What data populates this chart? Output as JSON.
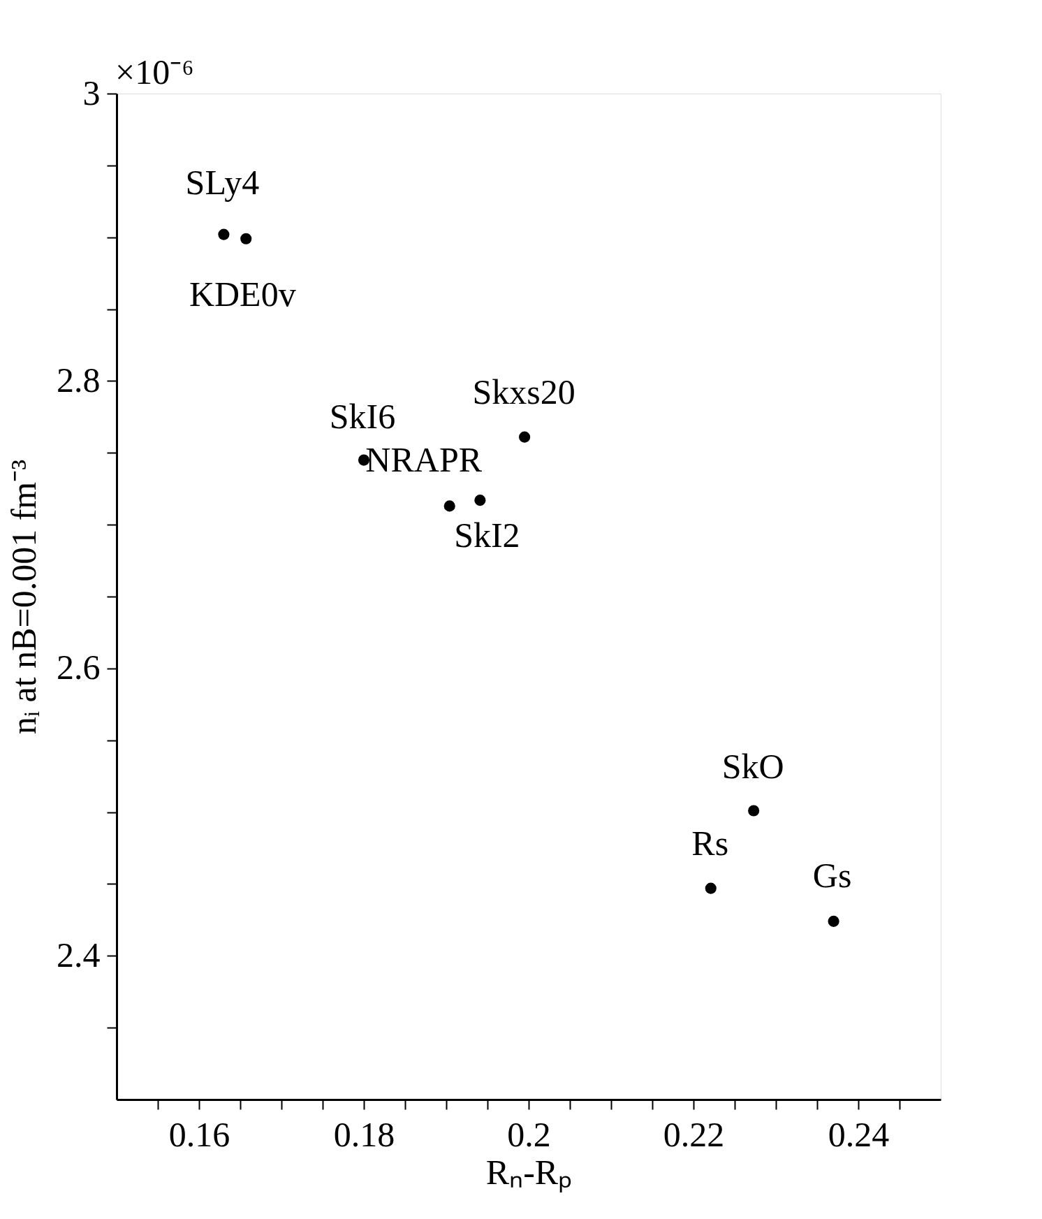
{
  "chart_data": {
    "type": "scatter",
    "xlabel": "Rₙ-Rₚ",
    "ylabel": "nᵢ at nB=0.001 fm⁻³",
    "x": [
      0.163,
      0.1657,
      0.18,
      0.1904,
      0.1941,
      0.1995,
      0.2273,
      0.2221,
      0.237
    ],
    "series": [
      {
        "color": "#000000",
        "values": [
          2.902,
          2.899,
          2.745,
          2.713,
          2.717,
          2.761,
          2.501,
          2.447,
          2.424
        ]
      }
    ],
    "marker": "circle",
    "xlim": [
      0.15,
      0.25
    ],
    "ylim": [
      2.3,
      3
    ],
    "xticks": [
      {
        "value": 0.155,
        "label": null
      },
      0.16,
      {
        "value": 0.165,
        "label": null
      },
      {
        "value": 0.17,
        "label": null
      },
      {
        "value": 0.175,
        "label": null
      },
      0.18,
      {
        "value": 0.185,
        "label": null
      },
      {
        "value": 0.19,
        "label": null
      },
      {
        "value": 0.195,
        "label": null
      },
      0.2,
      {
        "value": 0.205,
        "label": null
      },
      {
        "value": 0.21,
        "label": null
      },
      {
        "value": 0.215,
        "label": null
      },
      0.22,
      {
        "value": 0.225,
        "label": null
      },
      {
        "value": 0.23,
        "label": null
      },
      {
        "value": 0.235,
        "label": null
      },
      0.24,
      {
        "value": 0.245,
        "label": null
      }
    ],
    "yticks": [
      {
        "value": 2.35,
        "label": null
      },
      2.4,
      {
        "value": 2.45,
        "label": null
      },
      {
        "value": 2.5,
        "label": null
      },
      {
        "value": 2.55,
        "label": null
      },
      2.6,
      {
        "value": 2.65,
        "label": null
      },
      {
        "value": 2.7,
        "label": null
      },
      {
        "value": 2.75,
        "label": null
      },
      2.8,
      {
        "value": 2.85,
        "label": null
      },
      {
        "value": 2.9,
        "label": null
      },
      {
        "value": 2.95,
        "label": null
      },
      3
    ],
    "grid": false,
    "annotations": [
      {
        "text": "SLy4",
        "x": 0.163,
        "y": 2.902
      },
      {
        "text": "KDE0v",
        "x": 0.1657,
        "y": 2.899
      },
      {
        "text": "SkI6",
        "x": 0.18,
        "y": 2.745
      },
      {
        "text": "NRAPR",
        "x": 0.1904,
        "y": 2.713
      },
      {
        "text": "SkI2",
        "x": 0.1941,
        "y": 2.717
      },
      {
        "text": "Skxs20",
        "x": 0.1995,
        "y": 2.761
      },
      {
        "text": "SkO",
        "x": 0.2273,
        "y": 2.501
      },
      {
        "text": "Rs",
        "x": 0.2221,
        "y": 2.447
      },
      {
        "text": "Gs",
        "x": 0.237,
        "y": 2.424
      },
      "×10⁻⁶"
    ]
  }
}
